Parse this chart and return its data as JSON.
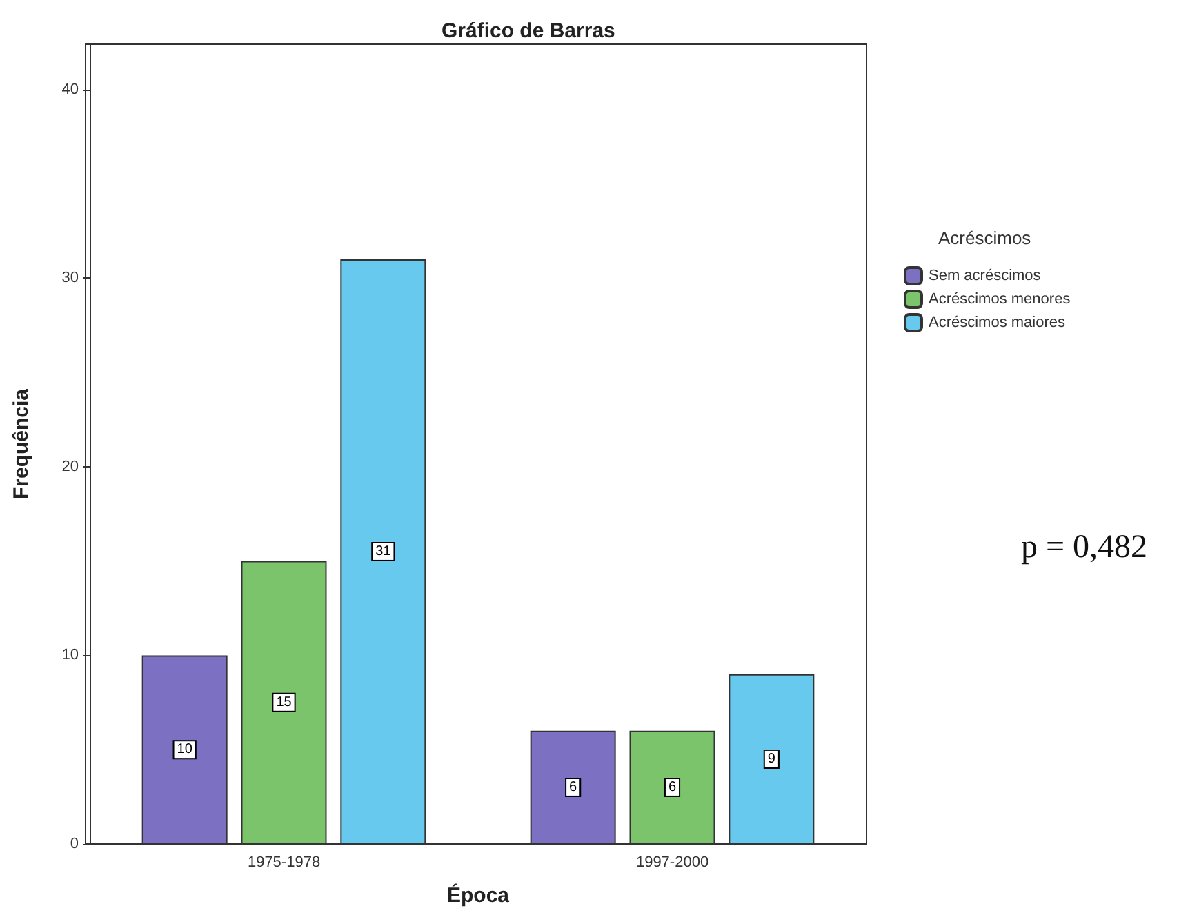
{
  "chart_data": {
    "type": "bar",
    "title": "Gráfico de Barras",
    "xlabel": "Época",
    "ylabel": "Frequência",
    "legend_title": "Acréscimos",
    "categories": [
      "1975-1978",
      "1997-2000"
    ],
    "series": [
      {
        "name": "Sem acréscimos",
        "color": "#7b70c2",
        "values": [
          10,
          6
        ]
      },
      {
        "name": "Acréscimos menores",
        "color": "#7cc46c",
        "values": [
          15,
          6
        ]
      },
      {
        "name": "Acréscimos maiores",
        "color": "#68c9ef",
        "values": [
          31,
          9
        ]
      }
    ],
    "ylim": [
      0,
      42.4
    ],
    "yticks": [
      0,
      10,
      20,
      30,
      40
    ],
    "grid": false,
    "legend": "top right",
    "data_labels": true,
    "annotations": [
      "p = 0,482"
    ]
  }
}
